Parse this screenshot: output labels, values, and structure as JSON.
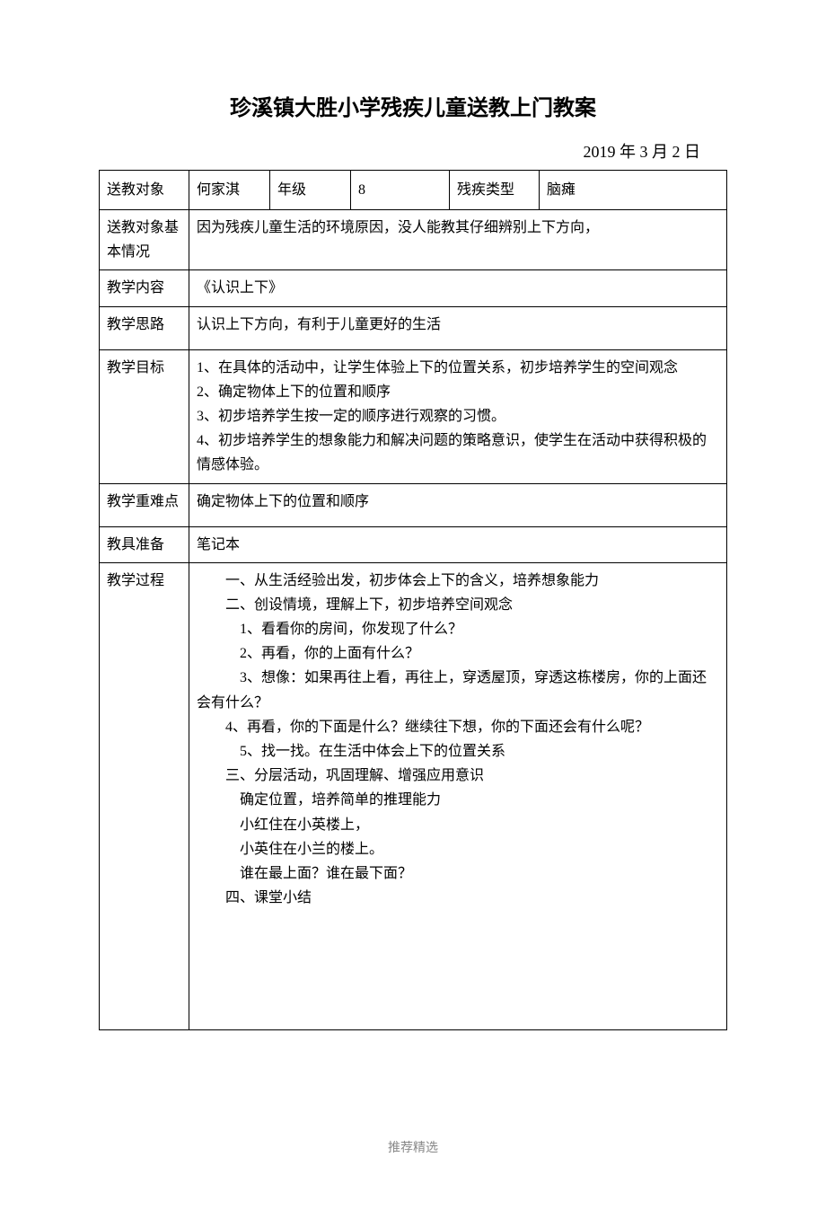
{
  "title": "珍溪镇大胜小学残疾儿童送教上门教案",
  "date_line": "2019 年 3 月  2 日",
  "header_row": {
    "label1": "送教对象",
    "val1": "何家淇",
    "label2": "年级",
    "val2": "8",
    "label3": "残疾类型",
    "val3": "脑瘫"
  },
  "rows": {
    "situation": {
      "label": "送教对象基本情况",
      "value": "因为残疾儿童生活的环境原因，没人能教其仔细辨别上下方向，"
    },
    "content": {
      "label": "教学内容",
      "value": "《认识上下》"
    },
    "thinking": {
      "label": "教学思路",
      "value": "认识上下方向，有利于儿童更好的生活"
    },
    "goal": {
      "label": "教学目标",
      "lines": [
        "1、在具体的活动中，让学生体验上下的位置关系，初步培养学生的空间观念",
        "2、确定物体上下的位置和顺序",
        "3、初步培养学生按一定的顺序进行观察的习惯。",
        "4、初步培养学生的想象能力和解决问题的策略意识，使学生在活动中获得积极的情感体验。"
      ]
    },
    "focus": {
      "label": "教学重难点",
      "value": "确定物体上下的位置和顺序"
    },
    "tools": {
      "label": "教具准备",
      "value": "笔记本"
    },
    "process": {
      "label": "教学过程",
      "lines": [
        {
          "text": "一、从生活经验出发，初步体会上下的含义，培养想象能力",
          "indent": 1
        },
        {
          "text": "二、创设情境，理解上下，初步培养空间观念",
          "indent": 1
        },
        {
          "text": "1、看看你的房间，你发现了什么？",
          "indent": 2
        },
        {
          "text": "2、再看，你的上面有什么？",
          "indent": 2
        },
        {
          "text": "3、想像：如果再往上看，再往上，穿透屋顶，穿透这栋楼房，你的上面还会有什么？",
          "indent": 2,
          "wrap": true
        },
        {
          "text": "4、再看，你的下面是什么？继续往下想，你的下面还会有什么呢？",
          "indent": 2,
          "wrap": true,
          "wrapIndent": 0
        },
        {
          "text": "5、找一找。在生活中体会上下的位置关系",
          "indent": 2
        },
        {
          "text": "三、分层活动，巩固理解、增强应用意识",
          "indent": 1
        },
        {
          "text": "确定位置，培养简单的推理能力",
          "indent": 2
        },
        {
          "text": "小红住在小英楼上，",
          "indent": 2
        },
        {
          "text": "小英住在小兰的楼上。",
          "indent": 2
        },
        {
          "text": "谁在最上面？谁在最下面？",
          "indent": 2
        },
        {
          "text": "四、课堂小结",
          "indent": 1
        }
      ]
    }
  },
  "footer": "推荐精选",
  "colors": {
    "text": "#000000",
    "border": "#000000",
    "background": "#ffffff",
    "footer": "#888888"
  }
}
